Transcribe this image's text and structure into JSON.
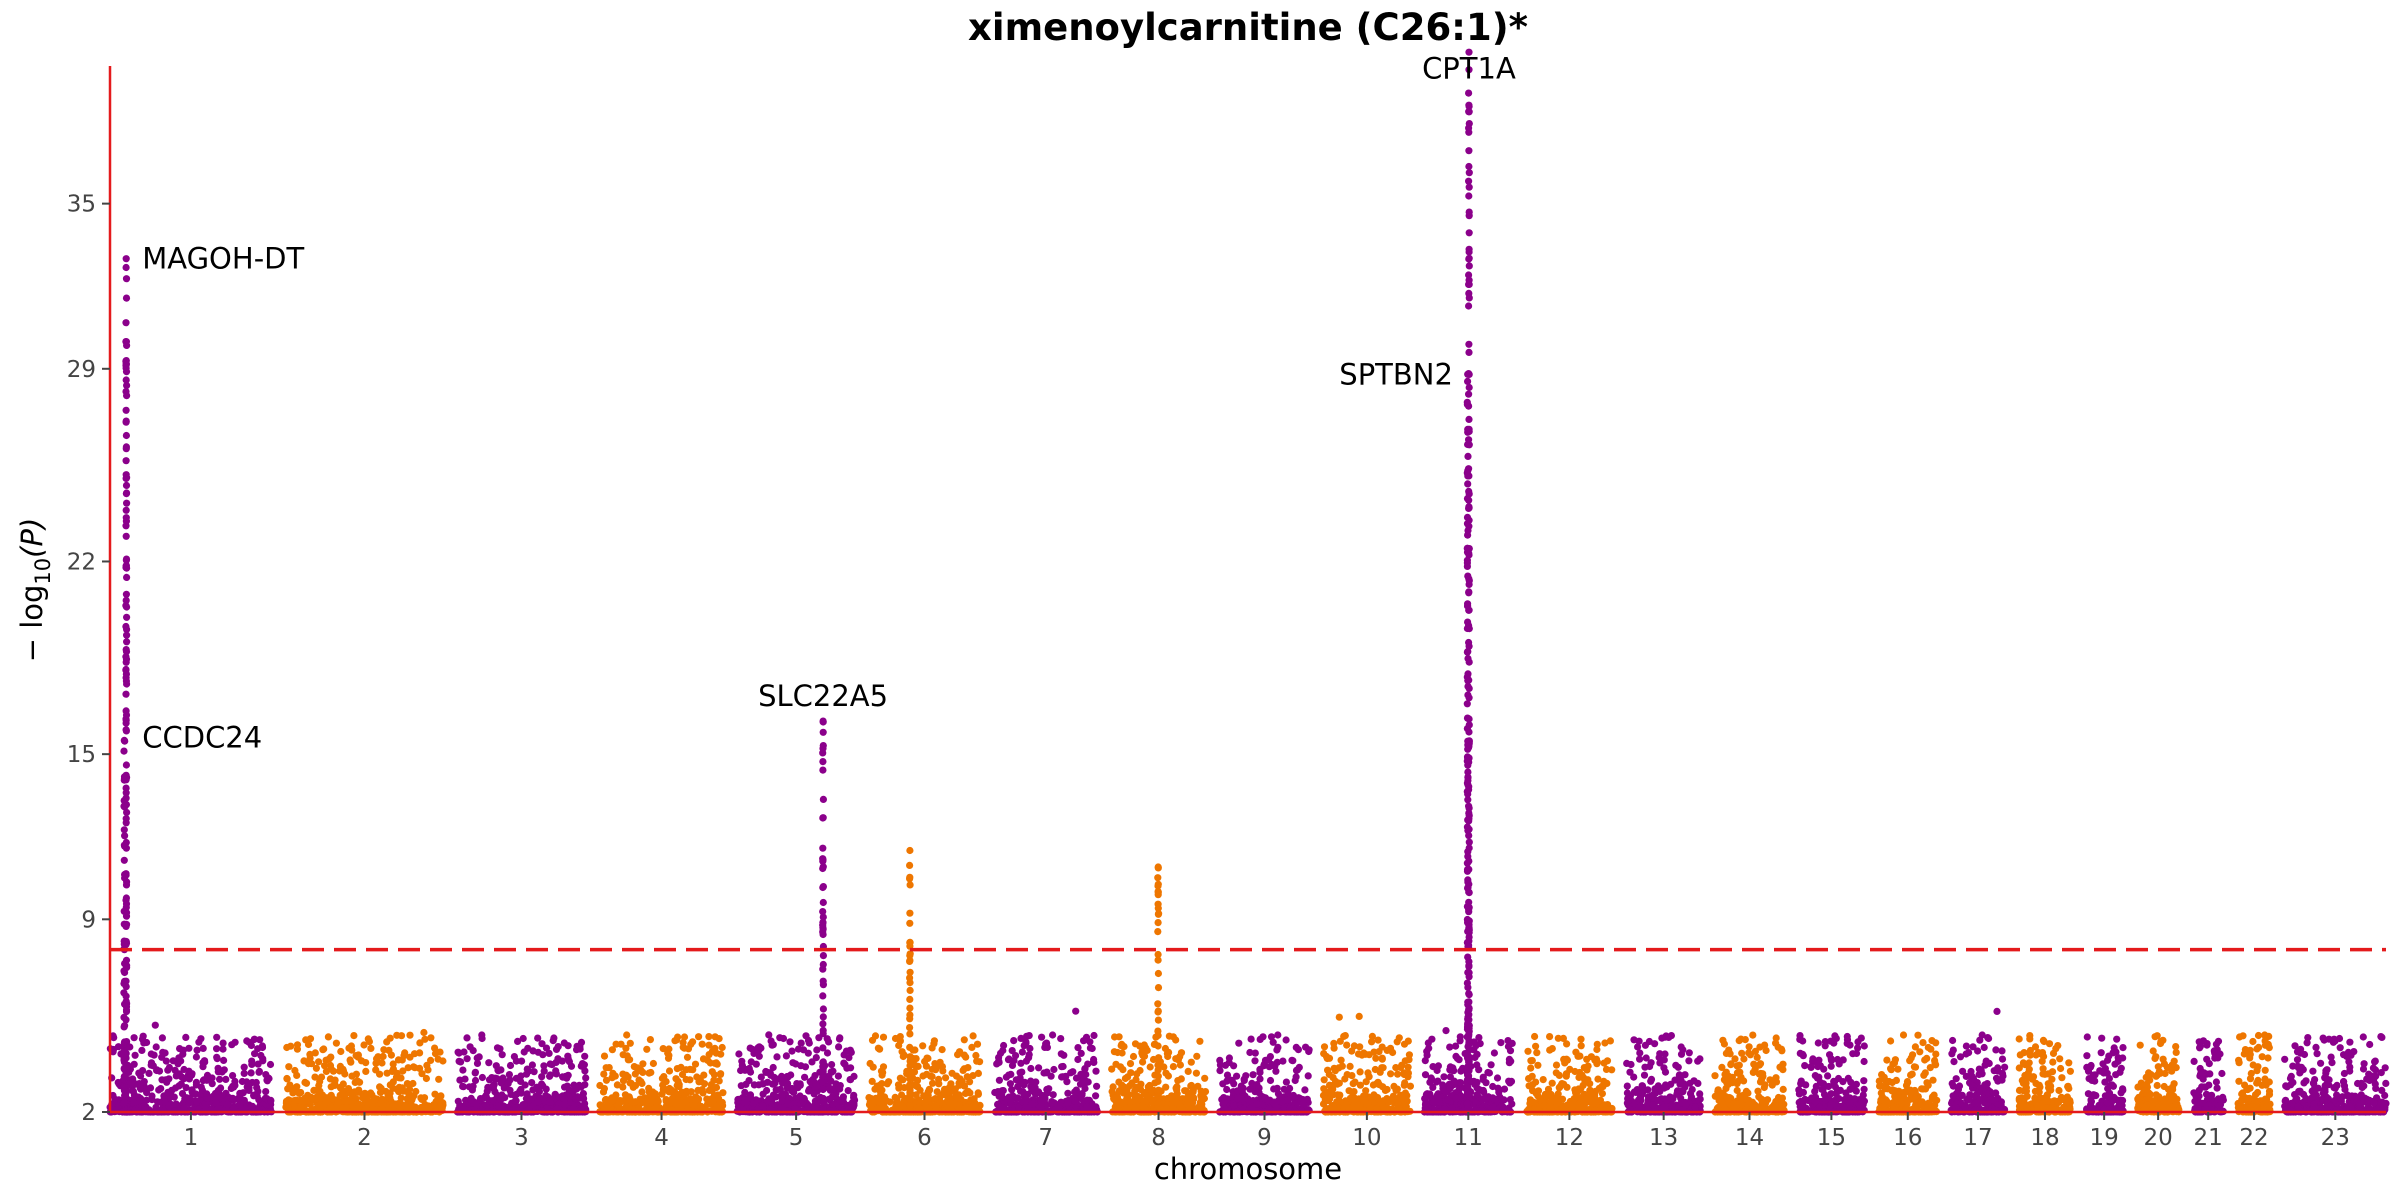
{
  "chart_data": {
    "type": "scatter",
    "title": "ximenoylcarnitine (C26:1)*",
    "xlabel": "chromosome",
    "ylabel_main": "− log",
    "ylabel_sub": "10",
    "ylabel_tail": "(P)",
    "ylim": [
      2,
      40
    ],
    "y_ticks": [
      "2",
      "9",
      "15",
      "22",
      "29",
      "35"
    ],
    "significance_threshold": 7.9,
    "colors": {
      "odd": "#8b008b",
      "even": "#ee7600",
      "threshold": "#e41a1c",
      "axis": "#e41a1c"
    },
    "chromosomes": [
      "1",
      "2",
      "3",
      "4",
      "5",
      "6",
      "7",
      "8",
      "9",
      "10",
      "11",
      "12",
      "13",
      "14",
      "15",
      "16",
      "17",
      "18",
      "19",
      "20",
      "21",
      "22",
      "23"
    ],
    "chromosome_lengths_mb": [
      249,
      242,
      198,
      190,
      181,
      171,
      159,
      145,
      138,
      134,
      135,
      133,
      114,
      107,
      102,
      90,
      83,
      80,
      59,
      64,
      47,
      51,
      156
    ],
    "peaks": [
      {
        "chromosome": "1",
        "position_mb": 25,
        "max_log_p": 33.0,
        "gene": "MAGOH-DT"
      },
      {
        "chromosome": "1",
        "position_mb": 22,
        "max_log_p": 15.5,
        "gene": "CCDC24"
      },
      {
        "chromosome": "5",
        "position_mb": 132,
        "max_log_p": 16.2,
        "gene": "SLC22A5"
      },
      {
        "chromosome": "6",
        "position_mb": 63,
        "max_log_p": 11.5,
        "gene": ""
      },
      {
        "chromosome": "8",
        "position_mb": 72,
        "max_log_p": 10.9,
        "gene": ""
      },
      {
        "chromosome": "11",
        "position_mb": 68.5,
        "max_log_p": 40.5,
        "gene": "CPT1A"
      },
      {
        "chromosome": "11",
        "position_mb": 66.5,
        "max_log_p": 28.8,
        "gene": "SPTBN2"
      }
    ],
    "gene_labels": [
      {
        "text": "MAGOH-DT",
        "chromosome": "1",
        "position_mb": 25,
        "log_p": 33.0,
        "side": "right"
      },
      {
        "text": "CCDC24",
        "chromosome": "1",
        "position_mb": 25,
        "log_p": 15.6,
        "side": "right"
      },
      {
        "text": "SLC22A5",
        "chromosome": "5",
        "position_mb": 132,
        "log_p": 16.6,
        "side": "center"
      },
      {
        "text": "CPT1A",
        "chromosome": "11",
        "position_mb": 68.5,
        "log_p": 39.4,
        "side": "center"
      },
      {
        "text": "SPTBN2",
        "chromosome": "11",
        "position_mb": 68.5,
        "log_p": 28.8,
        "side": "left"
      }
    ]
  }
}
